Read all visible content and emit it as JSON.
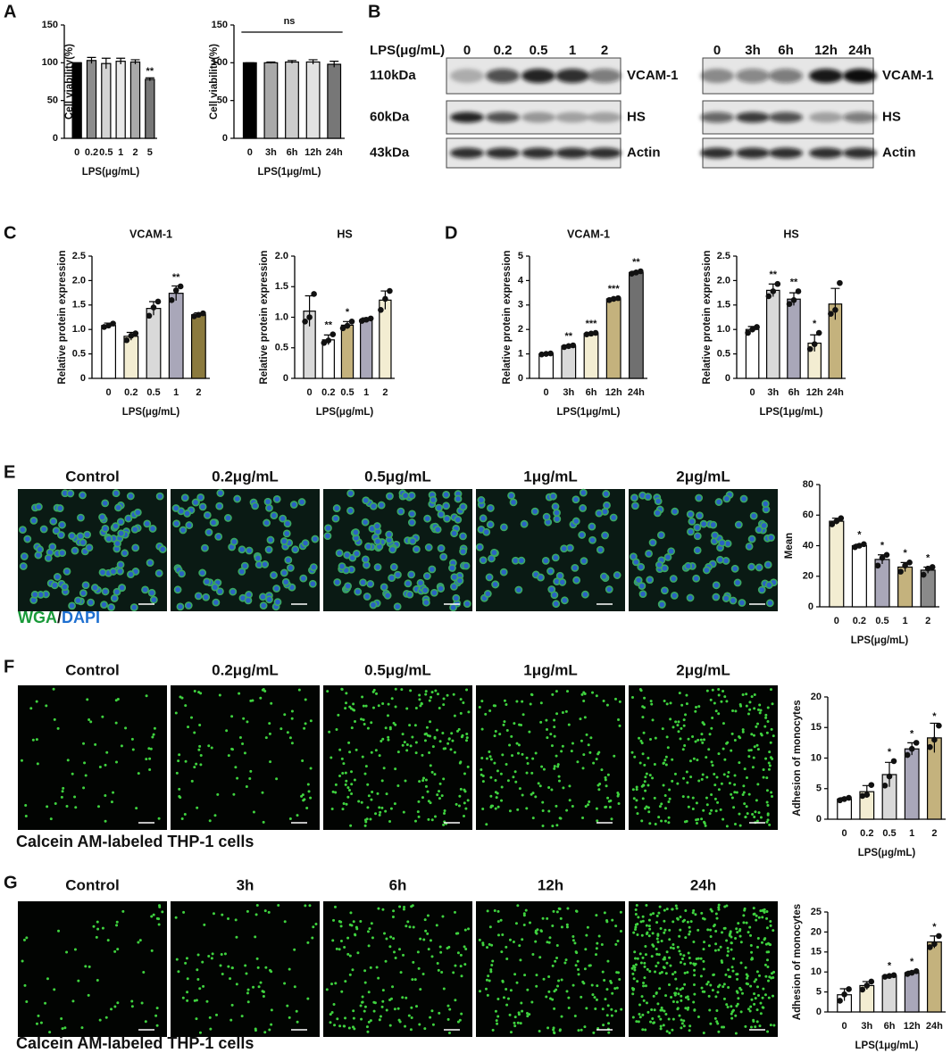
{
  "panel_labels": [
    "A",
    "B",
    "C",
    "D",
    "E",
    "F",
    "G"
  ],
  "chart_data": [
    {
      "type": "bar",
      "categories": [
        "0",
        "0.2",
        "0.5",
        "1",
        "2",
        "5"
      ],
      "values": [
        100,
        103,
        99,
        102,
        101,
        78
      ],
      "errors": [
        0,
        4,
        7,
        4,
        3,
        2
      ],
      "colors": [
        "#000000",
        "#8c8c8c",
        "#d4d4d4",
        "#e9e9e9",
        "#a9a9a9",
        "#777777"
      ],
      "significance": [
        null,
        null,
        null,
        null,
        null,
        "**"
      ],
      "xlabel": "LPS(μg/mL)",
      "ylabel": "Cell viability(%)",
      "ylim": [
        0,
        150
      ],
      "yticks": [
        0,
        50,
        100,
        150
      ]
    },
    {
      "type": "bar",
      "categories": [
        "0",
        "3h",
        "6h",
        "12h",
        "24h"
      ],
      "values": [
        100,
        100,
        101,
        101,
        98
      ],
      "errors": [
        0,
        1,
        2,
        3,
        4
      ],
      "colors": [
        "#000000",
        "#a9a9a9",
        "#cccccc",
        "#e2e2e2",
        "#777777"
      ],
      "annotation": "ns",
      "xlabel": "LPS(1μg/mL)",
      "ylabel": "Cell viability(%)",
      "ylim": [
        0,
        150
      ],
      "yticks": [
        0,
        50,
        100,
        150
      ]
    },
    {
      "type": "bar",
      "title": "VCAM-1",
      "categories": [
        "0",
        "0.2",
        "0.5",
        "1",
        "2"
      ],
      "values": [
        1.08,
        0.86,
        1.43,
        1.74,
        1.3
      ],
      "errors": [
        0.05,
        0.08,
        0.14,
        0.15,
        0.04
      ],
      "points": [
        [
          1.05,
          1.08,
          1.12
        ],
        [
          0.78,
          0.87,
          0.92
        ],
        [
          1.28,
          1.45,
          1.57
        ],
        [
          1.6,
          1.8,
          1.88
        ],
        [
          1.27,
          1.3,
          1.33
        ]
      ],
      "colors": [
        "#ffffff",
        "#f3edd2",
        "#d9d9d9",
        "#a9a7b9",
        "#8b7a3e"
      ],
      "significance": [
        null,
        null,
        null,
        "**",
        null
      ],
      "xlabel": "LPS(μg/mL)",
      "ylabel": "Relative protein expression",
      "ylim": [
        0,
        2.5
      ],
      "yticks": [
        0,
        0.5,
        {
          "value": 1,
          "label": "1.0"
        },
        1.5,
        {
          "value": 2,
          "label": "2.0"
        },
        2.5
      ]
    },
    {
      "type": "bar",
      "title": "HS",
      "categories": [
        "0",
        "0.2",
        "0.5",
        "1",
        "2"
      ],
      "values": [
        1.1,
        0.63,
        0.87,
        0.96,
        1.28
      ],
      "errors": [
        0.25,
        0.08,
        0.06,
        0.03,
        0.15
      ],
      "points": [
        [
          0.93,
          1.0,
          1.38
        ],
        [
          0.58,
          0.62,
          0.72
        ],
        [
          0.82,
          0.86,
          0.93
        ],
        [
          0.94,
          0.96,
          0.98
        ],
        [
          1.12,
          1.3,
          1.43
        ]
      ],
      "colors": [
        "#d9d9d9",
        "#ffffff",
        "#c4b27d",
        "#a9a7b9",
        "#f3edd2"
      ],
      "significance": [
        null,
        "**",
        "*",
        null,
        null
      ],
      "xlabel": "LPS(μg/mL)",
      "ylabel": "Relative protein expression",
      "ylim": [
        0,
        2
      ],
      "yticks": [
        0,
        0.5,
        {
          "value": 1,
          "label": "1.0"
        },
        1.5,
        {
          "value": 2,
          "label": "2.0"
        }
      ]
    },
    {
      "type": "bar",
      "title": "VCAM-1",
      "categories": [
        "0",
        "3h",
        "6h",
        "12h",
        "24h"
      ],
      "values": [
        1.0,
        1.32,
        1.83,
        3.25,
        4.33
      ],
      "errors": [
        0.02,
        0.04,
        0.03,
        0.04,
        0.05
      ],
      "points": [
        [
          0.98,
          1.0,
          1.02
        ],
        [
          1.28,
          1.32,
          1.35
        ],
        [
          1.8,
          1.83,
          1.86
        ],
        [
          3.2,
          3.25,
          3.28
        ],
        [
          4.28,
          4.33,
          4.38
        ]
      ],
      "colors": [
        "#ffffff",
        "#d9d9d9",
        "#f3edd2",
        "#c4b27d",
        "#707070"
      ],
      "significance": [
        null,
        "**",
        "***",
        "***",
        "**"
      ],
      "xlabel": "LPS(1μg/mL)",
      "ylabel": "Relative protein expression",
      "ylim": [
        0,
        5
      ],
      "yticks": [
        0,
        1,
        2,
        3,
        4,
        5
      ]
    },
    {
      "type": "bar",
      "title": "HS",
      "categories": [
        "0",
        "3h",
        "6h",
        "12h",
        "24h"
      ],
      "values": [
        1.0,
        1.8,
        1.62,
        0.72,
        1.52
      ],
      "errors": [
        0.06,
        0.13,
        0.13,
        0.17,
        0.32
      ],
      "points": [
        [
          0.93,
          1.0,
          1.05
        ],
        [
          1.68,
          1.78,
          1.93
        ],
        [
          1.52,
          1.6,
          1.78
        ],
        [
          0.6,
          0.7,
          0.93
        ],
        [
          1.32,
          1.4,
          1.95
        ]
      ],
      "colors": [
        "#ffffff",
        "#d9d9d9",
        "#a9a7b9",
        "#f3edd2",
        "#c4b27d"
      ],
      "significance": [
        null,
        "**",
        "**",
        "*",
        null
      ],
      "xlabel": "LPS(1μg/mL)",
      "ylabel": "Relative protein expression",
      "ylim": [
        0,
        2.5
      ],
      "yticks": [
        0,
        0.5,
        {
          "value": 1,
          "label": "1.0"
        },
        1.5,
        {
          "value": 2,
          "label": "2.0"
        },
        2.5
      ]
    },
    {
      "type": "bar",
      "categories": [
        "0",
        "0.2",
        "0.5",
        "1",
        "2"
      ],
      "values": [
        56,
        40,
        31,
        26,
        24
      ],
      "errors": [
        2,
        1,
        3,
        3,
        2
      ],
      "points": [
        [
          54,
          56,
          58
        ],
        [
          39,
          40,
          41
        ],
        [
          27,
          32,
          34
        ],
        [
          23,
          27,
          29
        ],
        [
          21,
          25,
          26
        ]
      ],
      "colors": [
        "#f3edd2",
        "#ffffff",
        "#a9a7b9",
        "#c4b27d",
        "#8a8a8a"
      ],
      "significance": [
        null,
        "*",
        "*",
        "*",
        "*"
      ],
      "xlabel": "LPS(μg/mL)",
      "ylabel": "Mean",
      "ylim": [
        0,
        80
      ],
      "yticks": [
        0,
        20,
        40,
        60,
        80
      ]
    },
    {
      "type": "bar",
      "categories": [
        "0",
        "0.2",
        "0.5",
        "1",
        "2"
      ],
      "values": [
        3.3,
        4.5,
        7.3,
        11.5,
        13.3
      ],
      "errors": [
        0.2,
        1,
        2,
        1,
        2.4
      ],
      "points": [
        [
          3.1,
          3.3,
          3.5
        ],
        [
          3.8,
          4.0,
          5.6
        ],
        [
          5.5,
          7.0,
          9.5
        ],
        [
          10.5,
          11.5,
          12.5
        ],
        [
          11.8,
          13.0,
          15.3
        ]
      ],
      "colors": [
        "#ffffff",
        "#f3edd2",
        "#d9d9d9",
        "#a9a7b9",
        "#c4b27d"
      ],
      "significance": [
        null,
        null,
        "*",
        "*",
        "*"
      ],
      "xlabel": "LPS(μg/mL)",
      "ylabel": "Adhesion of monocytes",
      "ylim": [
        0,
        20
      ],
      "yticks": [
        0,
        5,
        10,
        15,
        20
      ]
    },
    {
      "type": "bar",
      "categories": [
        "0",
        "3h",
        "6h",
        "12h",
        "24h"
      ],
      "values": [
        4.3,
        6.6,
        9.0,
        9.8,
        17.5
      ],
      "errors": [
        1.5,
        1.0,
        0.3,
        0.4,
        1.5
      ],
      "points": [
        [
          2.8,
          4.4,
          5.7
        ],
        [
          5.6,
          6.6,
          7.6
        ],
        [
          8.8,
          9.0,
          9.2
        ],
        [
          9.5,
          9.8,
          10.2
        ],
        [
          16.2,
          17.0,
          19.0
        ]
      ],
      "colors": [
        "#ffffff",
        "#f3edd2",
        "#d9d9d9",
        "#a9a7b9",
        "#c4b27d"
      ],
      "significance": [
        null,
        null,
        "*",
        "*",
        "*"
      ],
      "xlabel": "LPS(1μg/mL)",
      "ylabel": "Adhesion of monocytes",
      "ylim": [
        0,
        25
      ],
      "yticks": [
        0,
        5,
        10,
        15,
        20,
        25
      ]
    }
  ],
  "blots": [
    {
      "lanes_title": "LPS(μg/mL)",
      "lanes": [
        "0",
        "0.2",
        "0.5",
        "1",
        "2"
      ],
      "rows": [
        {
          "size": "110kDa",
          "protein": "VCAM-1"
        },
        {
          "size": "60kDa",
          "protein": "HS"
        },
        {
          "size": "43kDa",
          "protein": "Actin"
        }
      ]
    },
    {
      "lanes": [
        "0",
        "3h",
        "6h",
        "12h",
        "24h"
      ],
      "rows": [
        {
          "protein": "VCAM-1"
        },
        {
          "protein": "HS"
        },
        {
          "protein": "Actin"
        }
      ]
    }
  ],
  "micrographs": [
    {
      "labels": [
        "Control",
        "0.2μg/mL",
        "0.5μg/mL",
        "1μg/mL",
        "2μg/mL"
      ],
      "caption_parts": [
        "WGA",
        "/",
        "DAPI"
      ]
    },
    {
      "labels": [
        "Control",
        "0.2μg/mL",
        "0.5μg/mL",
        "1μg/mL",
        "2μg/mL"
      ],
      "caption": "Calcein AM-labeled THP-1 cells"
    },
    {
      "labels": [
        "Control",
        "3h",
        "6h",
        "12h",
        "24h"
      ],
      "caption": "Calcein AM-labeled THP-1 cells"
    }
  ]
}
